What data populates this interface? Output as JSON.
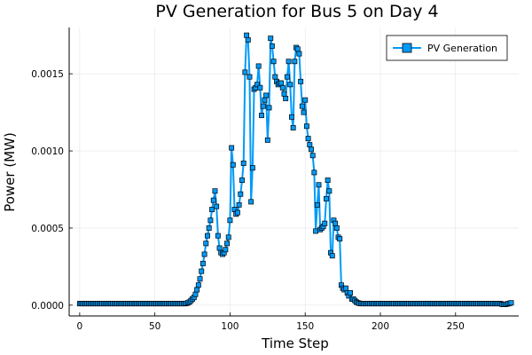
{
  "chart_data": {
    "type": "line",
    "title": "PV Generation for Bus 5 on Day 4",
    "xlabel": "Time Step",
    "ylabel": "Power (MW)",
    "xlim": [
      -7,
      292
    ],
    "ylim": [
      -7e-05,
      0.0018
    ],
    "xticks": [
      0,
      50,
      100,
      150,
      200,
      250
    ],
    "yticks": [
      0.0,
      0.0005,
      0.001,
      0.0015
    ],
    "ytick_labels": [
      "0.0000",
      "0.0005",
      "0.0010",
      "0.0015"
    ],
    "grid": true,
    "legend_position": "top-right",
    "series_color": "#009af9",
    "series": [
      {
        "name": "PV Generation",
        "marker": "square",
        "points": [
          [
            0,
            1e-05
          ],
          [
            1,
            1e-05
          ],
          [
            2,
            1e-05
          ],
          [
            3,
            1e-05
          ],
          [
            4,
            1e-05
          ],
          [
            5,
            1e-05
          ],
          [
            6,
            1e-05
          ],
          [
            7,
            1e-05
          ],
          [
            8,
            1e-05
          ],
          [
            9,
            1e-05
          ],
          [
            10,
            1e-05
          ],
          [
            11,
            1e-05
          ],
          [
            12,
            1e-05
          ],
          [
            13,
            1e-05
          ],
          [
            14,
            1e-05
          ],
          [
            15,
            1e-05
          ],
          [
            16,
            1e-05
          ],
          [
            17,
            1e-05
          ],
          [
            18,
            1e-05
          ],
          [
            19,
            1e-05
          ],
          [
            20,
            1e-05
          ],
          [
            21,
            1e-05
          ],
          [
            22,
            1e-05
          ],
          [
            23,
            1e-05
          ],
          [
            24,
            1e-05
          ],
          [
            25,
            1e-05
          ],
          [
            26,
            1e-05
          ],
          [
            27,
            1e-05
          ],
          [
            28,
            1e-05
          ],
          [
            29,
            1e-05
          ],
          [
            30,
            1e-05
          ],
          [
            31,
            1e-05
          ],
          [
            32,
            1e-05
          ],
          [
            33,
            1e-05
          ],
          [
            34,
            1e-05
          ],
          [
            35,
            1e-05
          ],
          [
            36,
            1e-05
          ],
          [
            37,
            1e-05
          ],
          [
            38,
            1e-05
          ],
          [
            39,
            1e-05
          ],
          [
            40,
            1e-05
          ],
          [
            41,
            1e-05
          ],
          [
            42,
            1e-05
          ],
          [
            43,
            1e-05
          ],
          [
            44,
            1e-05
          ],
          [
            45,
            1e-05
          ],
          [
            46,
            1e-05
          ],
          [
            47,
            1e-05
          ],
          [
            48,
            1e-05
          ],
          [
            49,
            1e-05
          ],
          [
            50,
            1e-05
          ],
          [
            51,
            1e-05
          ],
          [
            52,
            1e-05
          ],
          [
            53,
            1e-05
          ],
          [
            54,
            1e-05
          ],
          [
            55,
            1e-05
          ],
          [
            56,
            1e-05
          ],
          [
            57,
            1e-05
          ],
          [
            58,
            1e-05
          ],
          [
            59,
            1e-05
          ],
          [
            60,
            1e-05
          ],
          [
            61,
            1e-05
          ],
          [
            62,
            1e-05
          ],
          [
            63,
            1e-05
          ],
          [
            64,
            1e-05
          ],
          [
            65,
            1e-05
          ],
          [
            66,
            1e-05
          ],
          [
            67,
            1e-05
          ],
          [
            68,
            1e-05
          ],
          [
            69,
            1e-05
          ],
          [
            70,
            1e-05
          ],
          [
            71,
            1.2e-05
          ],
          [
            72,
            1.5e-05
          ],
          [
            73,
            2e-05
          ],
          [
            74,
            3e-05
          ],
          [
            75,
            4e-05
          ],
          [
            76,
            5e-05
          ],
          [
            77,
            7e-05
          ],
          [
            78,
            0.0001
          ],
          [
            79,
            0.00013
          ],
          [
            80,
            0.00017
          ],
          [
            81,
            0.00022
          ],
          [
            82,
            0.00027
          ],
          [
            83,
            0.00033
          ],
          [
            84,
            0.0004
          ],
          [
            85,
            0.00045
          ],
          [
            86,
            0.0005
          ],
          [
            87,
            0.00055
          ],
          [
            88,
            0.00062
          ],
          [
            89,
            0.00068
          ],
          [
            90,
            0.00074
          ],
          [
            91,
            0.00064
          ],
          [
            92,
            0.00045
          ],
          [
            93,
            0.00037
          ],
          [
            94,
            0.00034
          ],
          [
            95,
            0.00033
          ],
          [
            96,
            0.00034
          ],
          [
            97,
            0.00036
          ],
          [
            98,
            0.0004
          ],
          [
            99,
            0.00044
          ],
          [
            100,
            0.00055
          ],
          [
            101,
            0.00102
          ],
          [
            102,
            0.00091
          ],
          [
            103,
            0.00062
          ],
          [
            104,
            0.00059
          ],
          [
            105,
            0.0006
          ],
          [
            106,
            0.00065
          ],
          [
            107,
            0.00072
          ],
          [
            108,
            0.00081
          ],
          [
            109,
            0.00092
          ],
          [
            110,
            0.00151
          ],
          [
            111,
            0.00175
          ],
          [
            112,
            0.00172
          ],
          [
            113,
            0.00148
          ],
          [
            114,
            0.00067
          ],
          [
            115,
            0.00089
          ],
          [
            116,
            0.0014
          ],
          [
            117,
            0.00141
          ],
          [
            118,
            0.00143
          ],
          [
            119,
            0.00155
          ],
          [
            120,
            0.00141
          ],
          [
            121,
            0.00123
          ],
          [
            122,
            0.00129
          ],
          [
            123,
            0.00133
          ],
          [
            124,
            0.00136
          ],
          [
            125,
            0.00107
          ],
          [
            126,
            0.00128
          ],
          [
            127,
            0.00173
          ],
          [
            128,
            0.00168
          ],
          [
            129,
            0.00158
          ],
          [
            130,
            0.00148
          ],
          [
            131,
            0.00145
          ],
          [
            132,
            0.00143
          ],
          [
            133,
            0.00144
          ],
          [
            134,
            0.00144
          ],
          [
            135,
            0.00141
          ],
          [
            136,
            0.00137
          ],
          [
            137,
            0.00134
          ],
          [
            138,
            0.00148
          ],
          [
            139,
            0.00158
          ],
          [
            140,
            0.00143
          ],
          [
            141,
            0.00122
          ],
          [
            142,
            0.00115
          ],
          [
            143,
            0.00158
          ],
          [
            144,
            0.00167
          ],
          [
            145,
            0.00166
          ],
          [
            146,
            0.00163
          ],
          [
            147,
            0.00145
          ],
          [
            148,
            0.00129
          ],
          [
            149,
            0.00125
          ],
          [
            150,
            0.00133
          ],
          [
            151,
            0.00116
          ],
          [
            152,
            0.00108
          ],
          [
            153,
            0.00104
          ],
          [
            154,
            0.00101
          ],
          [
            155,
            0.00097
          ],
          [
            156,
            0.00086
          ],
          [
            157,
            0.00048
          ],
          [
            158,
            0.00065
          ],
          [
            159,
            0.00078
          ],
          [
            160,
            0.00049
          ],
          [
            161,
            0.0005
          ],
          [
            162,
            0.00051
          ],
          [
            163,
            0.00053
          ],
          [
            164,
            0.00069
          ],
          [
            165,
            0.00081
          ],
          [
            166,
            0.00074
          ],
          [
            167,
            0.00034
          ],
          [
            168,
            0.00032
          ],
          [
            169,
            0.00055
          ],
          [
            170,
            0.00053
          ],
          [
            171,
            0.0005
          ],
          [
            172,
            0.00044
          ],
          [
            173,
            0.00043
          ],
          [
            174,
            0.00013
          ],
          [
            175,
            0.00011
          ],
          [
            176,
            0.0001
          ],
          [
            177,
            0.00011
          ],
          [
            178,
            8e-05
          ],
          [
            179,
            6e-05
          ],
          [
            180,
            8e-05
          ],
          [
            181,
            4e-05
          ],
          [
            182,
            4e-05
          ],
          [
            183,
            3e-05
          ],
          [
            184,
            2e-05
          ],
          [
            185,
            1.5e-05
          ],
          [
            186,
            1.2e-05
          ],
          [
            187,
            1e-05
          ],
          [
            188,
            1e-05
          ],
          [
            189,
            1e-05
          ],
          [
            190,
            1e-05
          ],
          [
            191,
            1e-05
          ],
          [
            192,
            1e-05
          ],
          [
            193,
            1e-05
          ],
          [
            194,
            1e-05
          ],
          [
            195,
            1e-05
          ],
          [
            196,
            1e-05
          ],
          [
            197,
            1e-05
          ],
          [
            198,
            1e-05
          ],
          [
            199,
            1e-05
          ],
          [
            200,
            1e-05
          ],
          [
            201,
            1e-05
          ],
          [
            202,
            1e-05
          ],
          [
            203,
            1e-05
          ],
          [
            204,
            1e-05
          ],
          [
            205,
            1e-05
          ],
          [
            206,
            1e-05
          ],
          [
            207,
            1e-05
          ],
          [
            208,
            1e-05
          ],
          [
            209,
            1e-05
          ],
          [
            210,
            1e-05
          ],
          [
            211,
            1e-05
          ],
          [
            212,
            1e-05
          ],
          [
            213,
            1e-05
          ],
          [
            214,
            1e-05
          ],
          [
            215,
            1e-05
          ],
          [
            216,
            1e-05
          ],
          [
            217,
            1e-05
          ],
          [
            218,
            1e-05
          ],
          [
            219,
            1e-05
          ],
          [
            220,
            1e-05
          ],
          [
            221,
            1e-05
          ],
          [
            222,
            1e-05
          ],
          [
            223,
            1e-05
          ],
          [
            224,
            1e-05
          ],
          [
            225,
            1e-05
          ],
          [
            226,
            1e-05
          ],
          [
            227,
            1e-05
          ],
          [
            228,
            1e-05
          ],
          [
            229,
            1e-05
          ],
          [
            230,
            1e-05
          ],
          [
            231,
            1e-05
          ],
          [
            232,
            1e-05
          ],
          [
            233,
            1e-05
          ],
          [
            234,
            1e-05
          ],
          [
            235,
            1e-05
          ],
          [
            236,
            1e-05
          ],
          [
            237,
            1e-05
          ],
          [
            238,
            1e-05
          ],
          [
            239,
            1e-05
          ],
          [
            240,
            1e-05
          ],
          [
            241,
            1e-05
          ],
          [
            242,
            1e-05
          ],
          [
            243,
            1e-05
          ],
          [
            244,
            1e-05
          ],
          [
            245,
            1e-05
          ],
          [
            246,
            1e-05
          ],
          [
            247,
            1e-05
          ],
          [
            248,
            1e-05
          ],
          [
            249,
            1e-05
          ],
          [
            250,
            1e-05
          ],
          [
            251,
            1e-05
          ],
          [
            252,
            1e-05
          ],
          [
            253,
            1e-05
          ],
          [
            254,
            1e-05
          ],
          [
            255,
            1e-05
          ],
          [
            256,
            1e-05
          ],
          [
            257,
            1e-05
          ],
          [
            258,
            1e-05
          ],
          [
            259,
            1e-05
          ],
          [
            260,
            1e-05
          ],
          [
            261,
            1e-05
          ],
          [
            262,
            1e-05
          ],
          [
            263,
            1e-05
          ],
          [
            264,
            1e-05
          ],
          [
            265,
            1e-05
          ],
          [
            266,
            1e-05
          ],
          [
            267,
            1e-05
          ],
          [
            268,
            1e-05
          ],
          [
            269,
            1e-05
          ],
          [
            270,
            1e-05
          ],
          [
            271,
            1e-05
          ],
          [
            272,
            1e-05
          ],
          [
            273,
            1e-05
          ],
          [
            274,
            1e-05
          ],
          [
            275,
            1e-05
          ],
          [
            276,
            1e-05
          ],
          [
            277,
            1e-05
          ],
          [
            278,
            1e-05
          ],
          [
            279,
            1e-05
          ],
          [
            280,
            1e-05
          ],
          [
            281,
            5e-06
          ],
          [
            282,
            5e-06
          ],
          [
            283,
            5e-06
          ],
          [
            284,
            7e-06
          ],
          [
            285,
            1e-05
          ],
          [
            286,
            1.2e-05
          ],
          [
            287,
            1.5e-05
          ]
        ]
      }
    ]
  }
}
